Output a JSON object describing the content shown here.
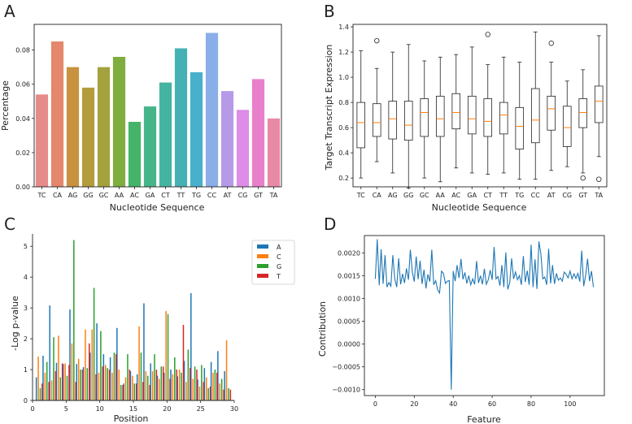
{
  "chart_data": [
    {
      "panel": "A",
      "type": "bar",
      "xlabel": "Nucleotide Sequence",
      "ylabel": "Percentage",
      "ylim": [
        0,
        0.095
      ],
      "yticks": [
        "0.00",
        "0.02",
        "0.04",
        "0.06",
        "0.08"
      ],
      "yticks_values": [
        0,
        0.02,
        0.04,
        0.06,
        0.08
      ],
      "categories": [
        "TC",
        "CA",
        "AG",
        "GG",
        "GC",
        "AA",
        "AC",
        "GA",
        "CT",
        "TT",
        "TG",
        "CC",
        "AT",
        "CG",
        "GT",
        "TA"
      ],
      "values": [
        0.054,
        0.085,
        0.07,
        0.058,
        0.07,
        0.076,
        0.038,
        0.047,
        0.061,
        0.081,
        0.067,
        0.09,
        0.056,
        0.045,
        0.063,
        0.04
      ],
      "colors": [
        "#e78a8a",
        "#e4876d",
        "#c9923f",
        "#b39c3c",
        "#a3a23f",
        "#7fad3f",
        "#45b468",
        "#47b58a",
        "#45b3a1",
        "#46b1b4",
        "#48b0cb",
        "#8aaee8",
        "#b69ae8",
        "#dd8ce8",
        "#e87fcb",
        "#e88aa6"
      ]
    },
    {
      "panel": "B",
      "type": "box",
      "xlabel": "Nucleotide Sequence",
      "ylabel": "Target Transcript Expression",
      "ylim": [
        0.13,
        1.42
      ],
      "yticks": [
        "0.2",
        "0.4",
        "0.6",
        "0.8",
        "1.0",
        "1.2",
        "1.4"
      ],
      "yticks_values": [
        0.2,
        0.4,
        0.6,
        0.8,
        1.0,
        1.2,
        1.4
      ],
      "categories": [
        "TC",
        "CA",
        "AG",
        "GG",
        "GC",
        "AA",
        "AC",
        "GA",
        "CT",
        "TT",
        "TG",
        "CC",
        "AT",
        "CG",
        "GT",
        "TA"
      ],
      "boxes": [
        {
          "min": 0.2,
          "q1": 0.44,
          "median": 0.64,
          "q3": 0.8,
          "max": 1.21,
          "outliers": []
        },
        {
          "min": 0.33,
          "q1": 0.53,
          "median": 0.64,
          "q3": 0.79,
          "max": 1.07,
          "outliers": [
            1.29
          ]
        },
        {
          "min": 0.24,
          "q1": 0.51,
          "median": 0.67,
          "q3": 0.81,
          "max": 1.2,
          "outliers": []
        },
        {
          "min": 0.12,
          "q1": 0.5,
          "median": 0.62,
          "q3": 0.81,
          "max": 1.26,
          "outliers": []
        },
        {
          "min": 0.2,
          "q1": 0.53,
          "median": 0.72,
          "q3": 0.83,
          "max": 1.13,
          "outliers": []
        },
        {
          "min": 0.17,
          "q1": 0.53,
          "median": 0.67,
          "q3": 0.85,
          "max": 1.16,
          "outliers": []
        },
        {
          "min": 0.28,
          "q1": 0.59,
          "median": 0.72,
          "q3": 0.87,
          "max": 1.18,
          "outliers": []
        },
        {
          "min": 0.24,
          "q1": 0.55,
          "median": 0.67,
          "q3": 0.85,
          "max": 1.24,
          "outliers": []
        },
        {
          "min": 0.23,
          "q1": 0.53,
          "median": 0.65,
          "q3": 0.83,
          "max": 1.1,
          "outliers": [
            1.34
          ]
        },
        {
          "min": 0.24,
          "q1": 0.55,
          "median": 0.7,
          "q3": 0.8,
          "max": 1.16,
          "outliers": []
        },
        {
          "min": 0.19,
          "q1": 0.43,
          "median": 0.61,
          "q3": 0.76,
          "max": 1.12,
          "outliers": []
        },
        {
          "min": 0.19,
          "q1": 0.48,
          "median": 0.66,
          "q3": 0.91,
          "max": 1.36,
          "outliers": []
        },
        {
          "min": 0.26,
          "q1": 0.58,
          "median": 0.75,
          "q3": 0.85,
          "max": 1.12,
          "outliers": [
            1.27
          ]
        },
        {
          "min": 0.29,
          "q1": 0.45,
          "median": 0.6,
          "q3": 0.77,
          "max": 0.97,
          "outliers": []
        },
        {
          "min": 0.24,
          "q1": 0.6,
          "median": 0.72,
          "q3": 0.83,
          "max": 1.06,
          "outliers": [
            0.2
          ]
        },
        {
          "min": 0.37,
          "q1": 0.64,
          "median": 0.81,
          "q3": 0.93,
          "max": 1.33,
          "outliers": [
            0.19
          ]
        }
      ]
    },
    {
      "panel": "C",
      "type": "bar",
      "xlabel": "Position",
      "ylabel": "-Log p-value",
      "xlim": [
        0,
        30
      ],
      "ylim": [
        0,
        5.4
      ],
      "xticks": [
        "0",
        "5",
        "10",
        "15",
        "20",
        "25",
        "30"
      ],
      "xticks_values": [
        0,
        5,
        10,
        15,
        20,
        25,
        30
      ],
      "yticks": [
        "0",
        "1",
        "2",
        "3",
        "4",
        "5"
      ],
      "yticks_values": [
        0,
        1,
        2,
        3,
        4,
        5
      ],
      "x": [
        1,
        2,
        3,
        4,
        5,
        6,
        7,
        8,
        9,
        10,
        11,
        12,
        13,
        14,
        15,
        16,
        17,
        18,
        19,
        20,
        21,
        22,
        23,
        24,
        25,
        26,
        27,
        28,
        29
      ],
      "legend": [
        "A",
        "C",
        "G",
        "T"
      ],
      "series": [
        {
          "name": "A",
          "color": "#1f77b4",
          "values": [
            0.75,
            1.45,
            3.08,
            1.22,
            1.18,
            2.95,
            1.18,
            1.08,
            1.55,
            2.5,
            1.5,
            1.4,
            2.35,
            0.55,
            0.95,
            0.85,
            3.15,
            1.2,
            0.8,
            0.9,
            1.0,
            0.78,
            1.28,
            3.48,
            0.68,
            1.05,
            1.25,
            1.6,
            0.95
          ]
        },
        {
          "name": "C",
          "color": "#ff7f0e",
          "values": [
            1.42,
            0.9,
            0.65,
            2.1,
            1.2,
            1.85,
            1.35,
            2.3,
            2.3,
            0.9,
            1.15,
            0.9,
            1.0,
            0.75,
            0.8,
            2.4,
            0.95,
            0.95,
            0.7,
            2.9,
            0.85,
            1.0,
            0.6,
            0.7,
            0.45,
            0.75,
            0.9,
            0.55,
            1.95
          ]
        },
        {
          "name": "G",
          "color": "#2ca02c",
          "values": [
            0.4,
            1.25,
            2.05,
            0.75,
            0.8,
            5.2,
            1.0,
            1.05,
            3.65,
            2.25,
            1.05,
            1.55,
            0.5,
            1.5,
            0.55,
            1.55,
            0.8,
            1.5,
            1.1,
            2.8,
            1.4,
            0.9,
            1.65,
            1.1,
            1.15,
            0.4,
            1.0,
            0.7,
            0.4
          ]
        },
        {
          "name": "T",
          "color": "#d62728",
          "values": [
            0.55,
            0.6,
            0.95,
            1.2,
            1.15,
            0.6,
            1.0,
            1.85,
            0.85,
            1.1,
            1.0,
            1.5,
            0.5,
            1.0,
            0.55,
            0.6,
            0.5,
            1.0,
            1.1,
            0.7,
            1.0,
            2.45,
            1.05,
            1.0,
            0.6,
            0.45,
            0.9,
            0.35,
            0.35
          ]
        }
      ]
    },
    {
      "panel": "D",
      "type": "line",
      "xlabel": "Feature",
      "ylabel": "Contribution",
      "xlim": [
        -5.6,
        117.6
      ],
      "ylim": [
        -0.00113,
        0.00238
      ],
      "xticks": [
        "0",
        "20",
        "40",
        "60",
        "80",
        "100"
      ],
      "xticks_values": [
        0,
        20,
        40,
        60,
        80,
        100
      ],
      "yticks": [
        "−0.0010",
        "−0.0005",
        "0.0000",
        "0.0005",
        "0.0010",
        "0.0015",
        "0.0020"
      ],
      "yticks_values": [
        -0.001,
        -0.0005,
        0.0,
        0.0005,
        0.001,
        0.0015,
        0.002
      ],
      "color": "#1f77b4",
      "values": [
        0.00143,
        0.0023,
        0.00129,
        0.00208,
        0.00132,
        0.00195,
        0.00125,
        0.00135,
        0.00127,
        0.00195,
        0.00143,
        0.00125,
        0.00188,
        0.00131,
        0.00154,
        0.00134,
        0.00166,
        0.00141,
        0.00207,
        0.00158,
        0.00137,
        0.00192,
        0.00142,
        0.00183,
        0.00132,
        0.00163,
        0.00122,
        0.00153,
        0.00137,
        0.00207,
        0.0013,
        0.00139,
        0.00119,
        0.00112,
        0.0016,
        0.00155,
        0.00133,
        0.00138,
        0.00139,
        -0.001,
        0.0016,
        0.00138,
        0.00173,
        0.00145,
        0.00187,
        0.00142,
        0.00157,
        0.00133,
        0.0015,
        0.0013,
        0.00143,
        0.00131,
        0.00182,
        0.00134,
        0.0015,
        0.00131,
        0.00165,
        0.00131,
        0.00141,
        0.00162,
        0.00141,
        0.00213,
        0.00143,
        0.00148,
        0.00128,
        0.00173,
        0.00125,
        0.00201,
        0.0012,
        0.00134,
        0.00188,
        0.00143,
        0.00158,
        0.00141,
        0.0015,
        0.0013,
        0.00193,
        0.00136,
        0.00161,
        0.0013,
        0.00218,
        0.00125,
        0.00186,
        0.00121,
        0.00225,
        0.00198,
        0.00143,
        0.00147,
        0.0013,
        0.00209,
        0.00133,
        0.00173,
        0.00132,
        0.00155,
        0.0014,
        0.00145,
        0.00138,
        0.00158,
        0.00153,
        0.00145,
        0.0016,
        0.00143,
        0.00154,
        0.00144,
        0.00155,
        0.00137,
        0.00205,
        0.00127,
        0.0015,
        0.00187,
        0.00138,
        0.0016,
        0.00125
      ]
    }
  ]
}
